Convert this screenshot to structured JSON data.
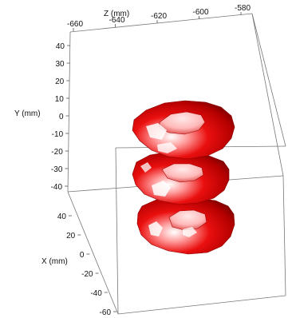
{
  "chart_data": {
    "type": "3d-surface",
    "axes": {
      "x": {
        "label": "X (mm)",
        "ticks": [
          "40",
          "20",
          "0",
          "-20",
          "-40",
          "-60"
        ],
        "range": [
          -60,
          40
        ]
      },
      "y": {
        "label": "Y (mm)",
        "ticks": [
          "40",
          "30",
          "20",
          "10",
          "0",
          "-10",
          "-20",
          "-30",
          "-40"
        ],
        "range": [
          -40,
          40
        ]
      },
      "z": {
        "label": "Z (mm)",
        "ticks": [
          "-660",
          "-640",
          "-620",
          "-600",
          "-580"
        ],
        "range": [
          -660,
          -580
        ]
      }
    },
    "grid": false,
    "surfaces": [
      {
        "shape": "torus",
        "color": "#e00000"
      },
      {
        "shape": "torus",
        "color": "#e00000"
      },
      {
        "shape": "torus",
        "color": "#e00000"
      }
    ]
  }
}
